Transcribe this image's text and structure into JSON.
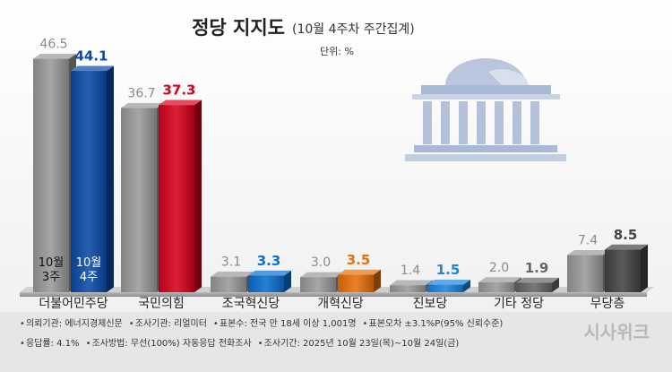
{
  "chart_data": {
    "type": "bar3d",
    "title": "정당 지지도",
    "subtitle": "(10월 4주차 주간집계)",
    "unit_note": "단위: %",
    "categories": [
      "더불어민주당",
      "국민의힘",
      "조국혁신당",
      "개혁신당",
      "진보당",
      "기타 정당",
      "무당층"
    ],
    "series": [
      {
        "name": "10월 3주",
        "color": "#9a9a9a",
        "label_color": "#8a8a8a",
        "values": [
          46.5,
          36.7,
          3.1,
          3.0,
          1.4,
          2.0,
          7.4
        ],
        "value_labels": [
          "46.5",
          "36.7",
          "3.1",
          "3.0",
          "1.4",
          "2.0",
          "7.4"
        ]
      },
      {
        "name": "10월 4주",
        "colors": [
          "#0b4aa8",
          "#d7001c",
          "#0a6fcf",
          "#e8700a",
          "#1b84e0",
          "#666666",
          "#444444"
        ],
        "values": [
          44.1,
          37.3,
          3.3,
          3.5,
          1.5,
          1.9,
          8.5
        ]
      }
    ],
    "notes": [
      [
        "의뢰기관: 에너지경제신문",
        "조사기관: 리얼미터",
        "표본수: 전국 만 18세 이상 1,001명",
        "표본오차 ±3.1%P(95% 신뢰수준)"
      ],
      [
        "응답률: 4.1%",
        "조사방법: 무선(100%) 자동응답 전화조사",
        "조사기간: 2025년 10월 23일(목)~10월 24일(금)"
      ]
    ],
    "logo": "시사위크"
  }
}
